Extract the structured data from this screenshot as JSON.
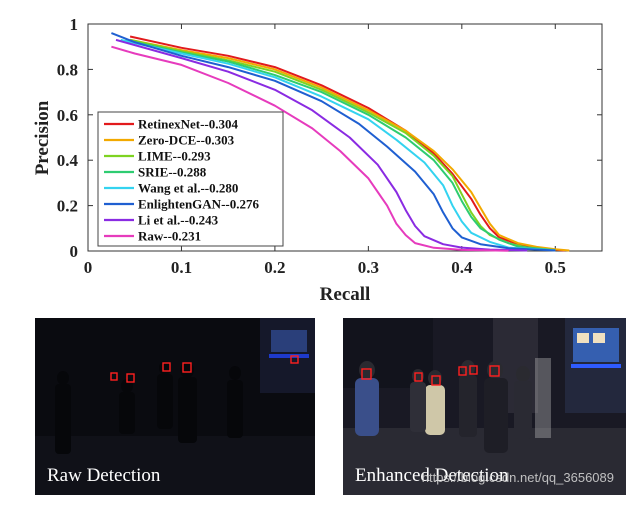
{
  "chart_data": {
    "type": "line",
    "xlabel": "Recall",
    "ylabel": "Precision",
    "xlim": [
      0,
      0.55
    ],
    "ylim": [
      0,
      1
    ],
    "xticks": [
      "0",
      "0.1",
      "0.2",
      "0.3",
      "0.4",
      "0.5"
    ],
    "yticks": [
      "0",
      "0.2",
      "0.4",
      "0.6",
      "0.8",
      "1"
    ],
    "grid": false,
    "legend_position": "lower-left",
    "series": [
      {
        "name": "RetinexNet--0.304",
        "color": "#e21a1c",
        "x": [
          0.045,
          0.1,
          0.15,
          0.2,
          0.25,
          0.3,
          0.34,
          0.37,
          0.39,
          0.41,
          0.42,
          0.43,
          0.44,
          0.46,
          0.48,
          0.5,
          0.51
        ],
        "y": [
          0.945,
          0.895,
          0.86,
          0.81,
          0.73,
          0.63,
          0.53,
          0.43,
          0.34,
          0.23,
          0.16,
          0.1,
          0.06,
          0.03,
          0.015,
          0.006,
          0.002
        ]
      },
      {
        "name": "Zero-DCE--0.303",
        "color": "#f2a900",
        "x": [
          0.045,
          0.1,
          0.15,
          0.2,
          0.25,
          0.3,
          0.34,
          0.37,
          0.39,
          0.41,
          0.42,
          0.43,
          0.44,
          0.46,
          0.48,
          0.5,
          0.515
        ],
        "y": [
          0.93,
          0.885,
          0.85,
          0.8,
          0.72,
          0.62,
          0.53,
          0.44,
          0.36,
          0.26,
          0.19,
          0.12,
          0.07,
          0.035,
          0.018,
          0.008,
          0.002
        ]
      },
      {
        "name": "LIME--0.293",
        "color": "#7ed321",
        "x": [
          0.045,
          0.1,
          0.15,
          0.2,
          0.25,
          0.3,
          0.34,
          0.37,
          0.39,
          0.4,
          0.41,
          0.42,
          0.43,
          0.45,
          0.47,
          0.5
        ],
        "y": [
          0.93,
          0.88,
          0.84,
          0.79,
          0.71,
          0.61,
          0.52,
          0.42,
          0.33,
          0.25,
          0.17,
          0.11,
          0.07,
          0.035,
          0.015,
          0.004
        ]
      },
      {
        "name": "SRIE--0.288",
        "color": "#2ecc71",
        "x": [
          0.04,
          0.1,
          0.15,
          0.2,
          0.25,
          0.3,
          0.34,
          0.37,
          0.39,
          0.4,
          0.41,
          0.42,
          0.44,
          0.46,
          0.5
        ],
        "y": [
          0.93,
          0.875,
          0.835,
          0.775,
          0.7,
          0.6,
          0.5,
          0.4,
          0.3,
          0.22,
          0.15,
          0.1,
          0.05,
          0.02,
          0.003
        ]
      },
      {
        "name": "Wang et al.--0.280",
        "color": "#34d3f0",
        "x": [
          0.035,
          0.1,
          0.15,
          0.2,
          0.25,
          0.3,
          0.33,
          0.36,
          0.38,
          0.39,
          0.4,
          0.41,
          0.43,
          0.45,
          0.5
        ],
        "y": [
          0.93,
          0.87,
          0.825,
          0.765,
          0.68,
          0.58,
          0.49,
          0.39,
          0.29,
          0.2,
          0.13,
          0.08,
          0.04,
          0.015,
          0.003
        ]
      },
      {
        "name": "EnlightenGAN--0.276",
        "color": "#1f5fd1",
        "x": [
          0.025,
          0.05,
          0.1,
          0.15,
          0.2,
          0.25,
          0.29,
          0.32,
          0.35,
          0.37,
          0.38,
          0.39,
          0.4,
          0.42,
          0.45,
          0.5
        ],
        "y": [
          0.96,
          0.92,
          0.86,
          0.81,
          0.75,
          0.66,
          0.56,
          0.46,
          0.35,
          0.25,
          0.17,
          0.1,
          0.06,
          0.03,
          0.012,
          0.002
        ]
      },
      {
        "name": "Li et al.--0.243",
        "color": "#8a2be2",
        "x": [
          0.03,
          0.1,
          0.15,
          0.2,
          0.24,
          0.28,
          0.31,
          0.33,
          0.34,
          0.35,
          0.36,
          0.38,
          0.4,
          0.43,
          0.47
        ],
        "y": [
          0.93,
          0.85,
          0.79,
          0.71,
          0.62,
          0.5,
          0.38,
          0.26,
          0.18,
          0.11,
          0.065,
          0.03,
          0.015,
          0.006,
          0.002
        ]
      },
      {
        "name": "Raw--0.231",
        "color": "#e63bbd",
        "x": [
          0.025,
          0.05,
          0.1,
          0.15,
          0.2,
          0.24,
          0.27,
          0.3,
          0.32,
          0.33,
          0.34,
          0.35,
          0.37,
          0.4,
          0.45
        ],
        "y": [
          0.9,
          0.87,
          0.82,
          0.74,
          0.64,
          0.54,
          0.44,
          0.32,
          0.2,
          0.12,
          0.07,
          0.035,
          0.014,
          0.005,
          0.001
        ]
      }
    ]
  },
  "panels": {
    "raw": {
      "caption": "Raw Detection"
    },
    "enhanced": {
      "caption": "Enhanced Detection"
    },
    "watermark": "https://blog.csdn.net/qq_3656089"
  },
  "colors": {
    "detection_box": "#ff2020"
  }
}
